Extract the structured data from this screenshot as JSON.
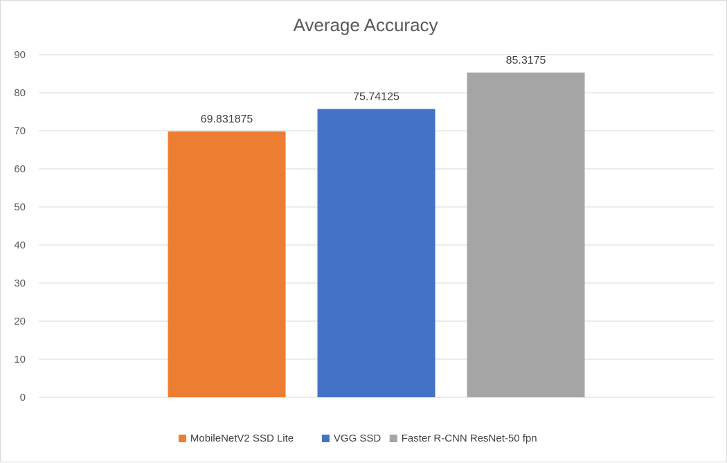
{
  "chart_data": {
    "type": "bar",
    "title": "Average Accuracy",
    "xlabel": "",
    "ylabel": "",
    "ylim": [
      0,
      90
    ],
    "yticks": [
      0,
      10,
      20,
      30,
      40,
      50,
      60,
      70,
      80,
      90
    ],
    "grid": true,
    "legend_position": "bottom",
    "series": [
      {
        "name": "MobileNetV2 SSD Lite",
        "value": 69.831875,
        "label": "69.831875",
        "color": "#ED7D31"
      },
      {
        "name": "VGG SSD",
        "value": 75.74125,
        "label": "75.74125",
        "color": "#4472C4"
      },
      {
        "name": "Faster R-CNN ResNet-50 fpn",
        "value": 85.3175,
        "label": "85.3175",
        "color": "#A5A5A5"
      }
    ]
  }
}
